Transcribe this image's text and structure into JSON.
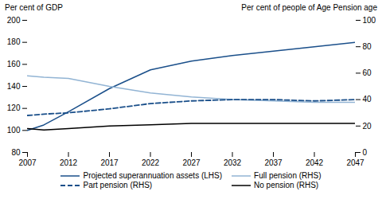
{
  "chart_data": {
    "type": "line",
    "x": [
      2007,
      2009,
      2012,
      2017,
      2022,
      2027,
      2032,
      2037,
      2042,
      2047
    ],
    "xlim": [
      2007,
      2047
    ],
    "xticks": [
      2007,
      2012,
      2017,
      2022,
      2027,
      2032,
      2037,
      2042,
      2047
    ],
    "ylim": [
      80,
      200
    ],
    "yticks": [
      80,
      100,
      120,
      140,
      160,
      180,
      200
    ],
    "y2lim": [
      0,
      100
    ],
    "y2ticks": [
      0,
      20,
      40,
      60,
      80,
      100
    ],
    "ylabel": "Per cent of GDP",
    "y2label": "Per cent of people of Age Pension age",
    "grid": false,
    "legend": "bottom",
    "series": [
      {
        "name": "Projected superannuation assets (LHS)",
        "color": "#1a4f8a",
        "line_style": "solid",
        "axis": "y",
        "values": [
          100,
          105,
          117,
          138,
          155,
          163,
          168,
          172,
          176,
          180
        ]
      },
      {
        "name": "Full pension (RHS)",
        "color": "#92b4d4",
        "line_style": "solid",
        "axis": "y2",
        "values": [
          58,
          57,
          56,
          50,
          45,
          42,
          40,
          39,
          38,
          38
        ]
      },
      {
        "name": "Part pension (RHS)",
        "color": "#1a4f8a",
        "line_style": "dashed",
        "axis": "y2",
        "values": [
          28,
          29,
          30,
          33,
          37,
          39,
          40,
          40,
          39,
          40
        ]
      },
      {
        "name": "No pension (RHS)",
        "color": "#000000",
        "line_style": "solid",
        "axis": "y2",
        "values": [
          18,
          17,
          18,
          20,
          21,
          22,
          22,
          22,
          22,
          22
        ]
      }
    ]
  }
}
